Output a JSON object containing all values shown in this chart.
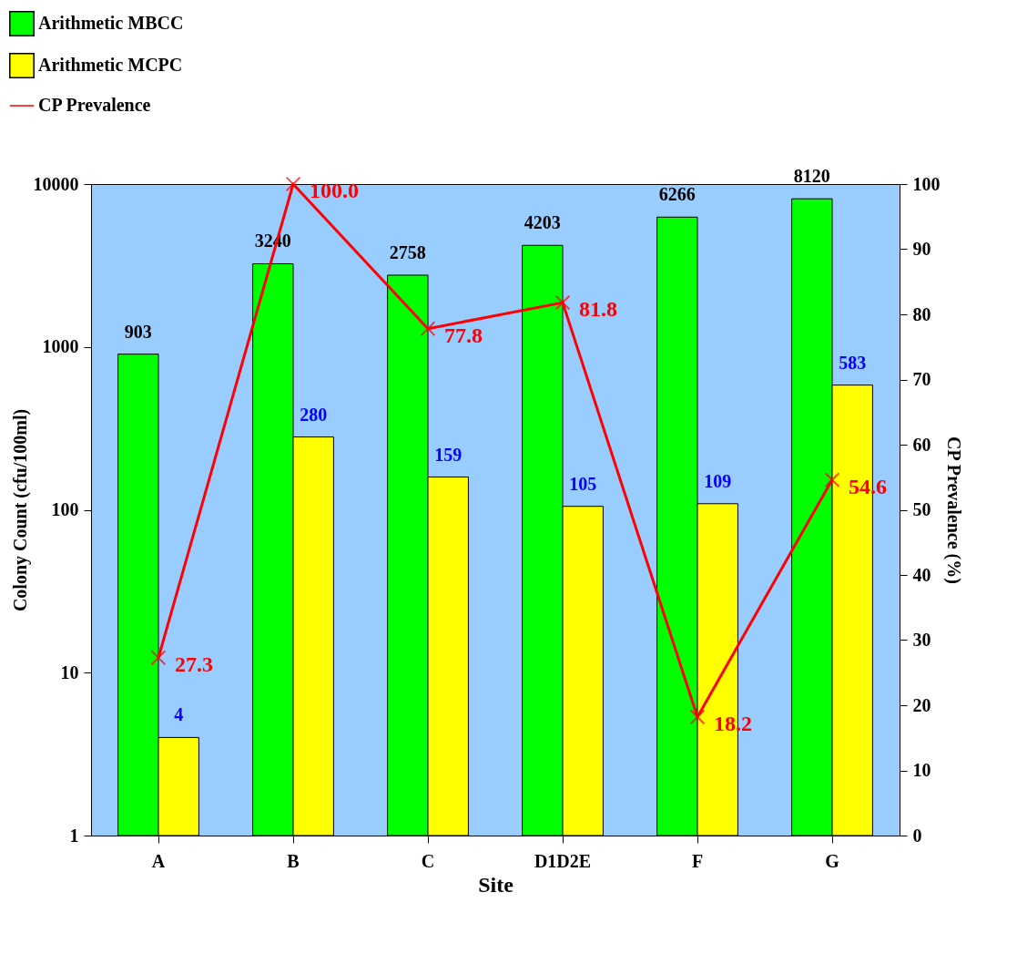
{
  "chart_data": {
    "type": "bar",
    "xlabel": "Site",
    "ylabel": "Colony Count (cfu/100ml)",
    "y2label": "CP Prevalence (%)",
    "categories": [
      "A",
      "B",
      "C",
      "D1D2E",
      "F",
      "G"
    ],
    "log": "y",
    "ylim": [
      1,
      10000
    ],
    "yticks": [
      1,
      10,
      100,
      1000,
      10000
    ],
    "y2lim": [
      0,
      100
    ],
    "y2ticks": [
      0,
      10,
      20,
      30,
      40,
      50,
      60,
      70,
      80,
      90,
      100
    ],
    "grid": false,
    "legend": "top left",
    "data_labels": true,
    "series": [
      {
        "name": "Arithmetic MBCC",
        "type": "bar",
        "color": "#00ff00",
        "values": [
          903,
          3240,
          2758,
          4203,
          6266,
          8120
        ]
      },
      {
        "name": "Arithmetic MCPC",
        "type": "bar",
        "color": "#ffff00",
        "values": [
          4,
          280,
          159,
          105,
          109,
          583
        ]
      },
      {
        "name": "CP Prevalence",
        "type": "line",
        "axis": "y2",
        "color": "#ff0000",
        "marker": "cross",
        "line_style": "solid",
        "values": [
          27.3,
          100.0,
          77.8,
          81.8,
          18.2,
          54.6
        ],
        "value_labels": [
          "27.3",
          "100.0",
          "77.8",
          "81.8",
          "18.2",
          "54.6"
        ]
      }
    ]
  }
}
